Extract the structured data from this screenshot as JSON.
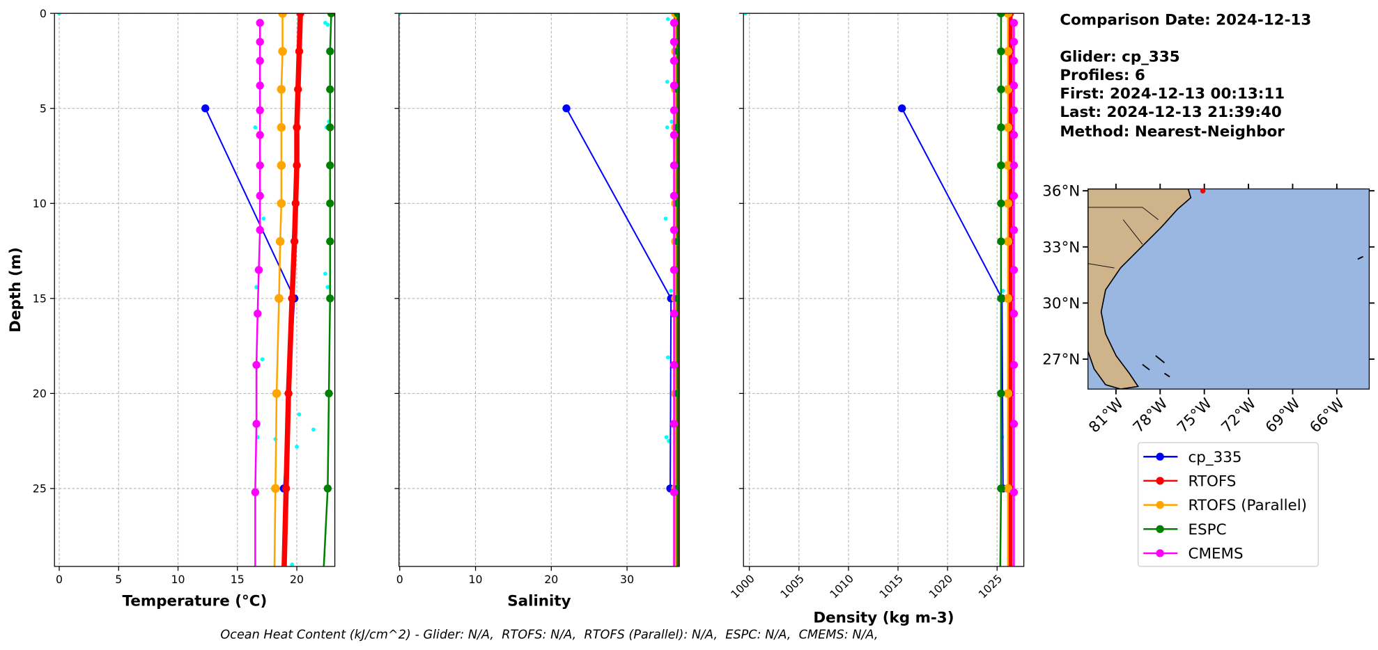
{
  "chart_data": [
    {
      "type": "line",
      "xlabel": "Temperature (°C)",
      "ylabel": "Depth (m)",
      "xlim": [
        -0.4,
        23.2
      ],
      "xticks": [
        0,
        5,
        10,
        15,
        20
      ],
      "ylim": [
        0,
        29.1
      ],
      "y_inverted": true,
      "yticks": [
        0,
        5,
        10,
        15,
        20,
        25
      ],
      "grid": true,
      "raw": {
        "color": "#00ffff",
        "depth": [
          0,
          0.5,
          0.6,
          3.7,
          5.7,
          6.0,
          6.0,
          10.8,
          13.7,
          14.4,
          14.4,
          18.2,
          21.1,
          21.9,
          22.3,
          22.4,
          22.8,
          29.0
        ],
        "values": [
          0,
          22.4,
          22.6,
          17.0,
          22.7,
          22.5,
          16.5,
          17.2,
          22.4,
          16.6,
          22.6,
          17.1,
          20.2,
          21.4,
          16.7,
          18.2,
          20.0,
          19.6
        ]
      },
      "series": [
        {
          "name": "cp_335",
          "color": "#0000ff",
          "depth": [
            5,
            15,
            25
          ],
          "values": [
            12.3,
            19.8,
            18.9
          ]
        },
        {
          "name": "RTOFS",
          "color": "#ff0000",
          "depth": [
            0,
            2,
            4,
            6,
            8,
            10,
            12,
            15,
            20,
            25,
            30
          ],
          "values": [
            20.3,
            20.2,
            20.1,
            20.0,
            20.0,
            19.9,
            19.8,
            19.6,
            19.3,
            19.1,
            18.9
          ]
        },
        {
          "name": "RTOFS (Parallel)",
          "color": "#ffa500",
          "depth": [
            0,
            2,
            4,
            6,
            8,
            10,
            12,
            15,
            20,
            25,
            30
          ],
          "values": [
            18.8,
            18.8,
            18.7,
            18.7,
            18.7,
            18.7,
            18.6,
            18.5,
            18.3,
            18.2,
            18.1
          ]
        },
        {
          "name": "ESPC",
          "color": "#008000",
          "depth": [
            0,
            2,
            4,
            6,
            8,
            10,
            12,
            15,
            20,
            25,
            30
          ],
          "values": [
            22.9,
            22.8,
            22.8,
            22.8,
            22.8,
            22.8,
            22.8,
            22.8,
            22.7,
            22.6,
            22.2
          ]
        },
        {
          "name": "CMEMS",
          "color": "#ff00ff",
          "depth": [
            0.5,
            1.5,
            2.5,
            3.8,
            5.1,
            6.4,
            8,
            9.6,
            11.4,
            13.5,
            15.8,
            18.5,
            21.6,
            25.2,
            29.4
          ],
          "values": [
            16.9,
            16.9,
            16.9,
            16.9,
            16.9,
            16.9,
            16.9,
            16.9,
            16.9,
            16.8,
            16.7,
            16.6,
            16.6,
            16.5,
            16.5
          ]
        }
      ]
    },
    {
      "type": "line",
      "xlabel": "Salinity",
      "xlim": [
        -0.1,
        36.9
      ],
      "xticks": [
        0,
        10,
        20,
        30
      ],
      "grid": true,
      "raw": {
        "color": "#00ffff",
        "depth": [
          0,
          0.3,
          3.6,
          5.7,
          6.0,
          10.8,
          14.6,
          18.1,
          22.3,
          22.5
        ],
        "values": [
          0,
          35.4,
          35.3,
          35.9,
          35.3,
          35.1,
          35.8,
          35.4,
          35.2,
          35.5
        ]
      },
      "series": [
        {
          "name": "cp_335",
          "color": "#0000ff",
          "depth": [
            5,
            15,
            25
          ],
          "values": [
            22.0,
            35.8,
            35.7
          ]
        },
        {
          "name": "RTOFS",
          "color": "#ff0000",
          "depth": [
            0,
            2,
            4,
            6,
            8,
            10,
            12,
            15,
            20,
            25,
            30
          ],
          "values": [
            36.5,
            36.5,
            36.5,
            36.5,
            36.5,
            36.5,
            36.5,
            36.5,
            36.5,
            36.5,
            36.5
          ]
        },
        {
          "name": "RTOFS (Parallel)",
          "color": "#ffa500",
          "depth": [
            0,
            2,
            4,
            6,
            8,
            10,
            12,
            15,
            20,
            25,
            30
          ],
          "values": [
            36.4,
            36.4,
            36.4,
            36.4,
            36.4,
            36.4,
            36.4,
            36.4,
            36.4,
            36.4,
            36.4
          ]
        },
        {
          "name": "ESPC",
          "color": "#008000",
          "depth": [
            0,
            2,
            4,
            6,
            8,
            10,
            12,
            15,
            20,
            25,
            30
          ],
          "values": [
            36.7,
            36.7,
            36.7,
            36.7,
            36.7,
            36.7,
            36.7,
            36.7,
            36.7,
            36.7,
            36.7
          ]
        },
        {
          "name": "CMEMS",
          "color": "#ff00ff",
          "depth": [
            0.5,
            1.5,
            2.5,
            3.8,
            5.1,
            6.4,
            8,
            9.6,
            11.4,
            13.5,
            15.8,
            18.5,
            21.6,
            25.2,
            29.4
          ],
          "values": [
            36.2,
            36.2,
            36.2,
            36.2,
            36.2,
            36.2,
            36.2,
            36.2,
            36.2,
            36.2,
            36.2,
            36.2,
            36.2,
            36.2,
            36.2
          ]
        }
      ]
    },
    {
      "type": "line",
      "xlabel": "Density (kg m-3)",
      "xlim": [
        999.4,
        1027.7
      ],
      "xticks": [
        1000,
        1005,
        1010,
        1015,
        1020,
        1025
      ],
      "grid": true,
      "raw": {
        "color": "#00ffff",
        "depth": [
          0,
          14.6,
          22.3
        ],
        "values": [
          999.6,
          1025.6,
          1025.5
        ]
      },
      "series": [
        {
          "name": "cp_335",
          "color": "#0000ff",
          "depth": [
            5,
            15,
            25
          ],
          "values": [
            1015.4,
            1025.5,
            1025.6
          ]
        },
        {
          "name": "RTOFS",
          "color": "#ff0000",
          "depth": [
            0,
            2,
            4,
            6,
            8,
            10,
            12,
            15,
            20,
            25,
            30
          ],
          "values": [
            1026.3,
            1026.3,
            1026.3,
            1026.3,
            1026.3,
            1026.3,
            1026.3,
            1026.3,
            1026.3,
            1026.3,
            1026.3
          ]
        },
        {
          "name": "RTOFS (Parallel)",
          "color": "#ffa500",
          "depth": [
            0,
            2,
            4,
            6,
            8,
            10,
            12,
            15,
            20,
            25,
            30
          ],
          "values": [
            1026.1,
            1026.1,
            1026.1,
            1026.1,
            1026.1,
            1026.1,
            1026.1,
            1026.1,
            1026.1,
            1026.1,
            1026.1
          ]
        },
        {
          "name": "ESPC",
          "color": "#008000",
          "depth": [
            0,
            2,
            4,
            6,
            8,
            10,
            12,
            15,
            20,
            25,
            30
          ],
          "values": [
            1025.4,
            1025.4,
            1025.4,
            1025.4,
            1025.4,
            1025.4,
            1025.4,
            1025.4,
            1025.4,
            1025.4,
            1025.3
          ]
        },
        {
          "name": "CMEMS",
          "color": "#ff00ff",
          "depth": [
            0.5,
            1.5,
            2.5,
            3.8,
            5.1,
            6.4,
            8,
            9.6,
            11.4,
            13.5,
            15.8,
            18.5,
            21.6,
            25.2,
            29.4
          ],
          "values": [
            1026.7,
            1026.7,
            1026.7,
            1026.7,
            1026.7,
            1026.7,
            1026.7,
            1026.7,
            1026.7,
            1026.7,
            1026.7,
            1026.7,
            1026.7,
            1026.7,
            1026.7
          ]
        }
      ]
    },
    {
      "type": "map",
      "xlim": [
        -82.9,
        -63.8
      ],
      "ylim": [
        25.4,
        36.1
      ],
      "xticks": [
        {
          "value": -81,
          "label": "81°W"
        },
        {
          "value": -78,
          "label": "78°W"
        },
        {
          "value": -75,
          "label": "75°W"
        },
        {
          "value": -72,
          "label": "72°W"
        },
        {
          "value": -69,
          "label": "69°W"
        },
        {
          "value": -66,
          "label": "66°W"
        }
      ],
      "yticks": [
        {
          "value": 36,
          "label": "36°N"
        },
        {
          "value": 33,
          "label": "33°N"
        },
        {
          "value": 30,
          "label": "30°N"
        },
        {
          "value": 27,
          "label": "27°N"
        }
      ],
      "points": {
        "color": "#ff0000",
        "lon": [
          -75.1
        ],
        "lat": [
          36.0
        ]
      }
    }
  ],
  "info": [
    "Comparison Date: 2024-12-13",
    "Glider: cp_335",
    "Profiles: 6",
    "First: 2024-12-13 00:13:11",
    "Last: 2024-12-13 21:39:40",
    "Method: Nearest-Neighbor"
  ],
  "footer": "Ocean Heat Content (kJ/cm^2) - Glider: N/A,  RTOFS: N/A,  RTOFS (Parallel): N/A,  ESPC: N/A,  CMEMS: N/A,"
}
